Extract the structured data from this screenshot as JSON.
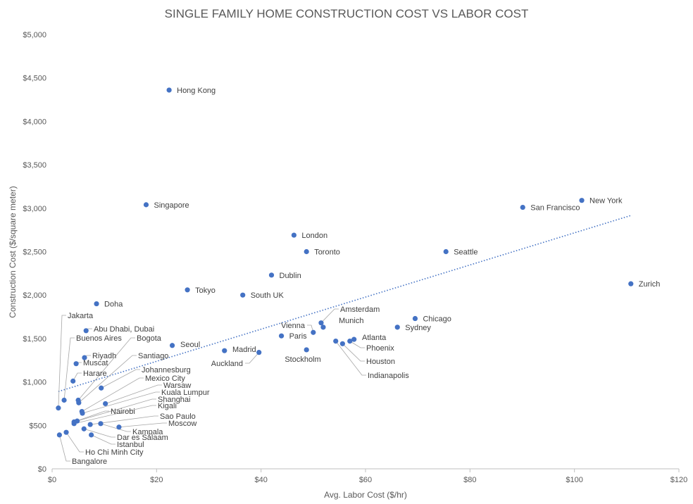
{
  "chart_data": {
    "type": "scatter",
    "title": "SINGLE FAMILY HOME CONSTRUCTION COST VS LABOR COST",
    "xlabel": "Avg. Labor Cost ($/hr)",
    "ylabel": "Construction Cost ($/square meter)",
    "xlim": [
      0,
      120
    ],
    "ylim": [
      0,
      5000
    ],
    "x_ticks": [
      0,
      20,
      40,
      60,
      80,
      100,
      120
    ],
    "x_tick_labels": [
      "$0",
      "$20",
      "$40",
      "$60",
      "$80",
      "$100",
      "$120"
    ],
    "y_ticks": [
      0,
      500,
      1000,
      1500,
      2000,
      2500,
      3000,
      3500,
      4000,
      4500,
      5000
    ],
    "y_tick_labels": [
      "$0",
      "$500",
      "$1,000",
      "$1,500",
      "$2,000",
      "$2,500",
      "$3,000",
      "$3,500",
      "$4,000",
      "$4,500",
      "$5,000"
    ],
    "grid": false,
    "point_color": "#4472c4",
    "trendline": {
      "style": "dotted",
      "color": "#4472c4",
      "from": [
        1.2,
        890
      ],
      "to": [
        111,
        2920
      ]
    },
    "points": [
      {
        "label": "Hong Kong",
        "x": 22.4,
        "y": 4360,
        "anchor": "right"
      },
      {
        "label": "Singapore",
        "x": 18.0,
        "y": 3040,
        "anchor": "right"
      },
      {
        "label": "New York",
        "x": 101.4,
        "y": 3090,
        "anchor": "right"
      },
      {
        "label": "San Francisco",
        "x": 90.1,
        "y": 3010,
        "anchor": "right"
      },
      {
        "label": "London",
        "x": 46.3,
        "y": 2690,
        "anchor": "right"
      },
      {
        "label": "Toronto",
        "x": 48.7,
        "y": 2500,
        "anchor": "right"
      },
      {
        "label": "Seattle",
        "x": 75.4,
        "y": 2500,
        "anchor": "right"
      },
      {
        "label": "Dublin",
        "x": 42.0,
        "y": 2230,
        "anchor": "right"
      },
      {
        "label": "Zurich",
        "x": 110.8,
        "y": 2130,
        "anchor": "right"
      },
      {
        "label": "Tokyo",
        "x": 25.9,
        "y": 2060,
        "anchor": "right"
      },
      {
        "label": "South UK",
        "x": 36.5,
        "y": 2000,
        "anchor": "right"
      },
      {
        "label": "Doha",
        "x": 8.5,
        "y": 1900,
        "anchor": "right"
      },
      {
        "label": "Chicago",
        "x": 69.5,
        "y": 1730,
        "anchor": "right"
      },
      {
        "label": "Sydney",
        "x": 66.1,
        "y": 1630,
        "anchor": "right"
      },
      {
        "label": "Amsterdam",
        "x": 51.5,
        "y": 1680,
        "anchor": "right"
      },
      {
        "label": "Munich",
        "x": 51.9,
        "y": 1630,
        "anchor": "right"
      },
      {
        "label": "Vienna",
        "x": 50.0,
        "y": 1570,
        "anchor": "left"
      },
      {
        "label": "Paris",
        "x": 43.9,
        "y": 1530,
        "anchor": "right"
      },
      {
        "label": "Atlanta",
        "x": 57.8,
        "y": 1490,
        "anchor": "right"
      },
      {
        "label": "Phoenix",
        "x": 57.0,
        "y": 1470,
        "anchor": "right"
      },
      {
        "label": "Houston",
        "x": 55.6,
        "y": 1440,
        "anchor": "right"
      },
      {
        "label": "Indianapolis",
        "x": 54.3,
        "y": 1470,
        "anchor": "right"
      },
      {
        "label": "Stockholm",
        "x": 48.7,
        "y": 1370,
        "anchor": "right"
      },
      {
        "label": "Madrid",
        "x": 33.0,
        "y": 1360,
        "anchor": "right"
      },
      {
        "label": "Auckland",
        "x": 39.6,
        "y": 1340,
        "anchor": "left"
      },
      {
        "label": "Seoul",
        "x": 23.0,
        "y": 1420,
        "anchor": "right"
      },
      {
        "label": "Abu Dhabi, Dubai",
        "x": 6.5,
        "y": 1590,
        "anchor": "right"
      },
      {
        "label": "Riyadh",
        "x": 6.2,
        "y": 1280,
        "anchor": "right"
      },
      {
        "label": "Muscat",
        "x": 4.6,
        "y": 1210,
        "anchor": "right"
      },
      {
        "label": "Harare",
        "x": 4.0,
        "y": 1010,
        "anchor": "right"
      },
      {
        "label": "Jakarta",
        "x": 1.2,
        "y": 700,
        "anchor": "right"
      },
      {
        "label": "Buenos Aires",
        "x": 2.3,
        "y": 790,
        "anchor": "right"
      },
      {
        "label": "Bogota",
        "x": 5.0,
        "y": 790,
        "anchor": "right"
      },
      {
        "label": "Santiago",
        "x": 5.1,
        "y": 760,
        "anchor": "right"
      },
      {
        "label": "Johannesburg",
        "x": 9.4,
        "y": 930,
        "anchor": "right"
      },
      {
        "label": "Mexico City",
        "x": 5.7,
        "y": 660,
        "anchor": "right"
      },
      {
        "label": "Warsaw",
        "x": 10.2,
        "y": 750,
        "anchor": "right"
      },
      {
        "label": "Kuala Lumpur",
        "x": 5.8,
        "y": 640,
        "anchor": "right"
      },
      {
        "label": "Shanghai",
        "x": 4.8,
        "y": 550,
        "anchor": "right"
      },
      {
        "label": "Kigali",
        "x": 4.2,
        "y": 520,
        "anchor": "right"
      },
      {
        "label": "Nairobi",
        "x": 4.2,
        "y": 540,
        "anchor": "right"
      },
      {
        "label": "Sao Paulo",
        "x": 7.3,
        "y": 510,
        "anchor": "right"
      },
      {
        "label": "Moscow",
        "x": 12.8,
        "y": 480,
        "anchor": "right"
      },
      {
        "label": "Kampala",
        "x": 9.3,
        "y": 520,
        "anchor": "right"
      },
      {
        "label": "Dar es Salaam",
        "x": 6.1,
        "y": 460,
        "anchor": "right"
      },
      {
        "label": "Istanbul",
        "x": 7.5,
        "y": 390,
        "anchor": "right"
      },
      {
        "label": "Ho Chi Minh City",
        "x": 2.7,
        "y": 420,
        "anchor": "right"
      },
      {
        "label": "Bangalore",
        "x": 1.4,
        "y": 390,
        "anchor": "right"
      }
    ]
  }
}
